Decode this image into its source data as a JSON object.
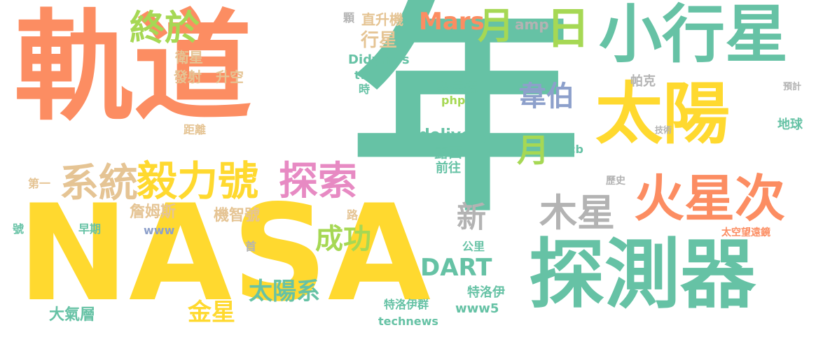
{
  "colors": {
    "orange": "#fc8d62",
    "teal": "#66c2a5",
    "green": "#a6d854",
    "yellow": "#ffd92f",
    "pink": "#e78ac3",
    "blue": "#8da0cb",
    "tan": "#e5c494",
    "gray": "#b3b3b3"
  },
  "words": [
    "軌道",
    "年",
    "NASA",
    "探測器",
    "小行星",
    "太陽",
    "火星次",
    "系統",
    "毅力號",
    "探索",
    "終於",
    "月",
    "日",
    "木星",
    "成功",
    "太陽系",
    "金星",
    "Mars",
    "韋伯",
    "DART",
    "新",
    "月",
    "行星",
    "詹姆斯",
    "機智號",
    "大氣層",
    "發射",
    "升空",
    "衛星",
    "直升機",
    "amp",
    "Didymos",
    "望遠鏡",
    "php",
    "delivery",
    "露西",
    "前往",
    "特洛伊",
    "www5",
    "technews",
    "特洛伊群",
    "地球",
    "帕克",
    "距離",
    "早期",
    "公里",
    "cb",
    "www",
    "歷史",
    "時",
    "tw",
    "號",
    "第一",
    "路",
    "首",
    "太空望遠鏡",
    "顆",
    "預計",
    "技術"
  ]
}
